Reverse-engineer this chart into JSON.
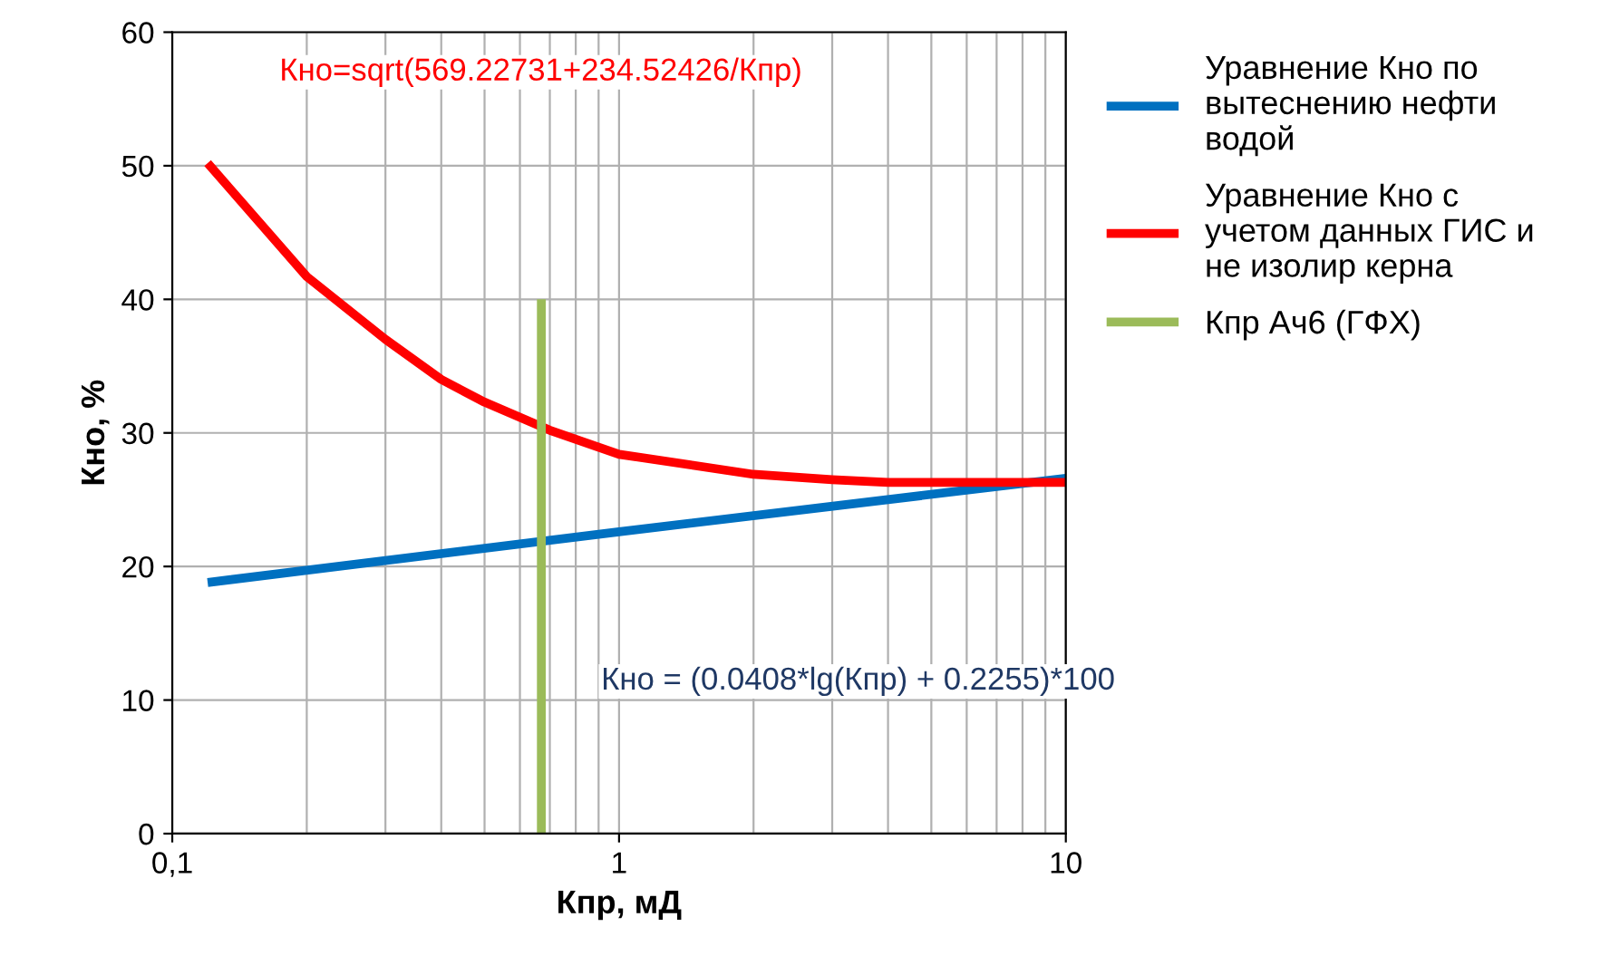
{
  "chart_data": {
    "type": "line",
    "xlabel": "Кпр, мД",
    "ylabel": "Кно, %",
    "log": "x",
    "xlim": [
      0.1,
      10
    ],
    "xticks": [
      {
        "value": 0.1,
        "label": "0,1"
      },
      1,
      10
    ],
    "ylim": [
      0,
      60
    ],
    "yticks": [
      0,
      10,
      20,
      30,
      40,
      50,
      60
    ],
    "grid": true,
    "legend": "right",
    "marker": "none",
    "series": [
      {
        "name": "Уравнение Кно по вытеснению нефти водой",
        "color": "#0070c0",
        "x": [
          0.12,
          1,
          10
        ],
        "values": [
          18.8,
          22.6,
          26.6
        ]
      },
      {
        "name": "Уравнение Кно с учетом данных ГИС и не изолир керна",
        "color": "#ff0000",
        "x": [
          0.12,
          0.2,
          0.3,
          0.4,
          0.5,
          0.7,
          1,
          2,
          3,
          4,
          10
        ],
        "values": [
          50.2,
          41.7,
          37.0,
          34.0,
          32.3,
          30.2,
          28.4,
          26.9,
          26.5,
          26.3,
          26.3
        ]
      },
      {
        "name": "Кпр Ач6 (ГФХ)",
        "color": "#9bbb59",
        "x": [
          0.67,
          0.67
        ],
        "values": [
          0,
          40
        ]
      }
    ],
    "annotations": [
      "Кно = (0.0408*lg(Кпр) + 0.2255)*100",
      "Кно=sqrt(569.22731+234.52426/Кпр)"
    ]
  }
}
